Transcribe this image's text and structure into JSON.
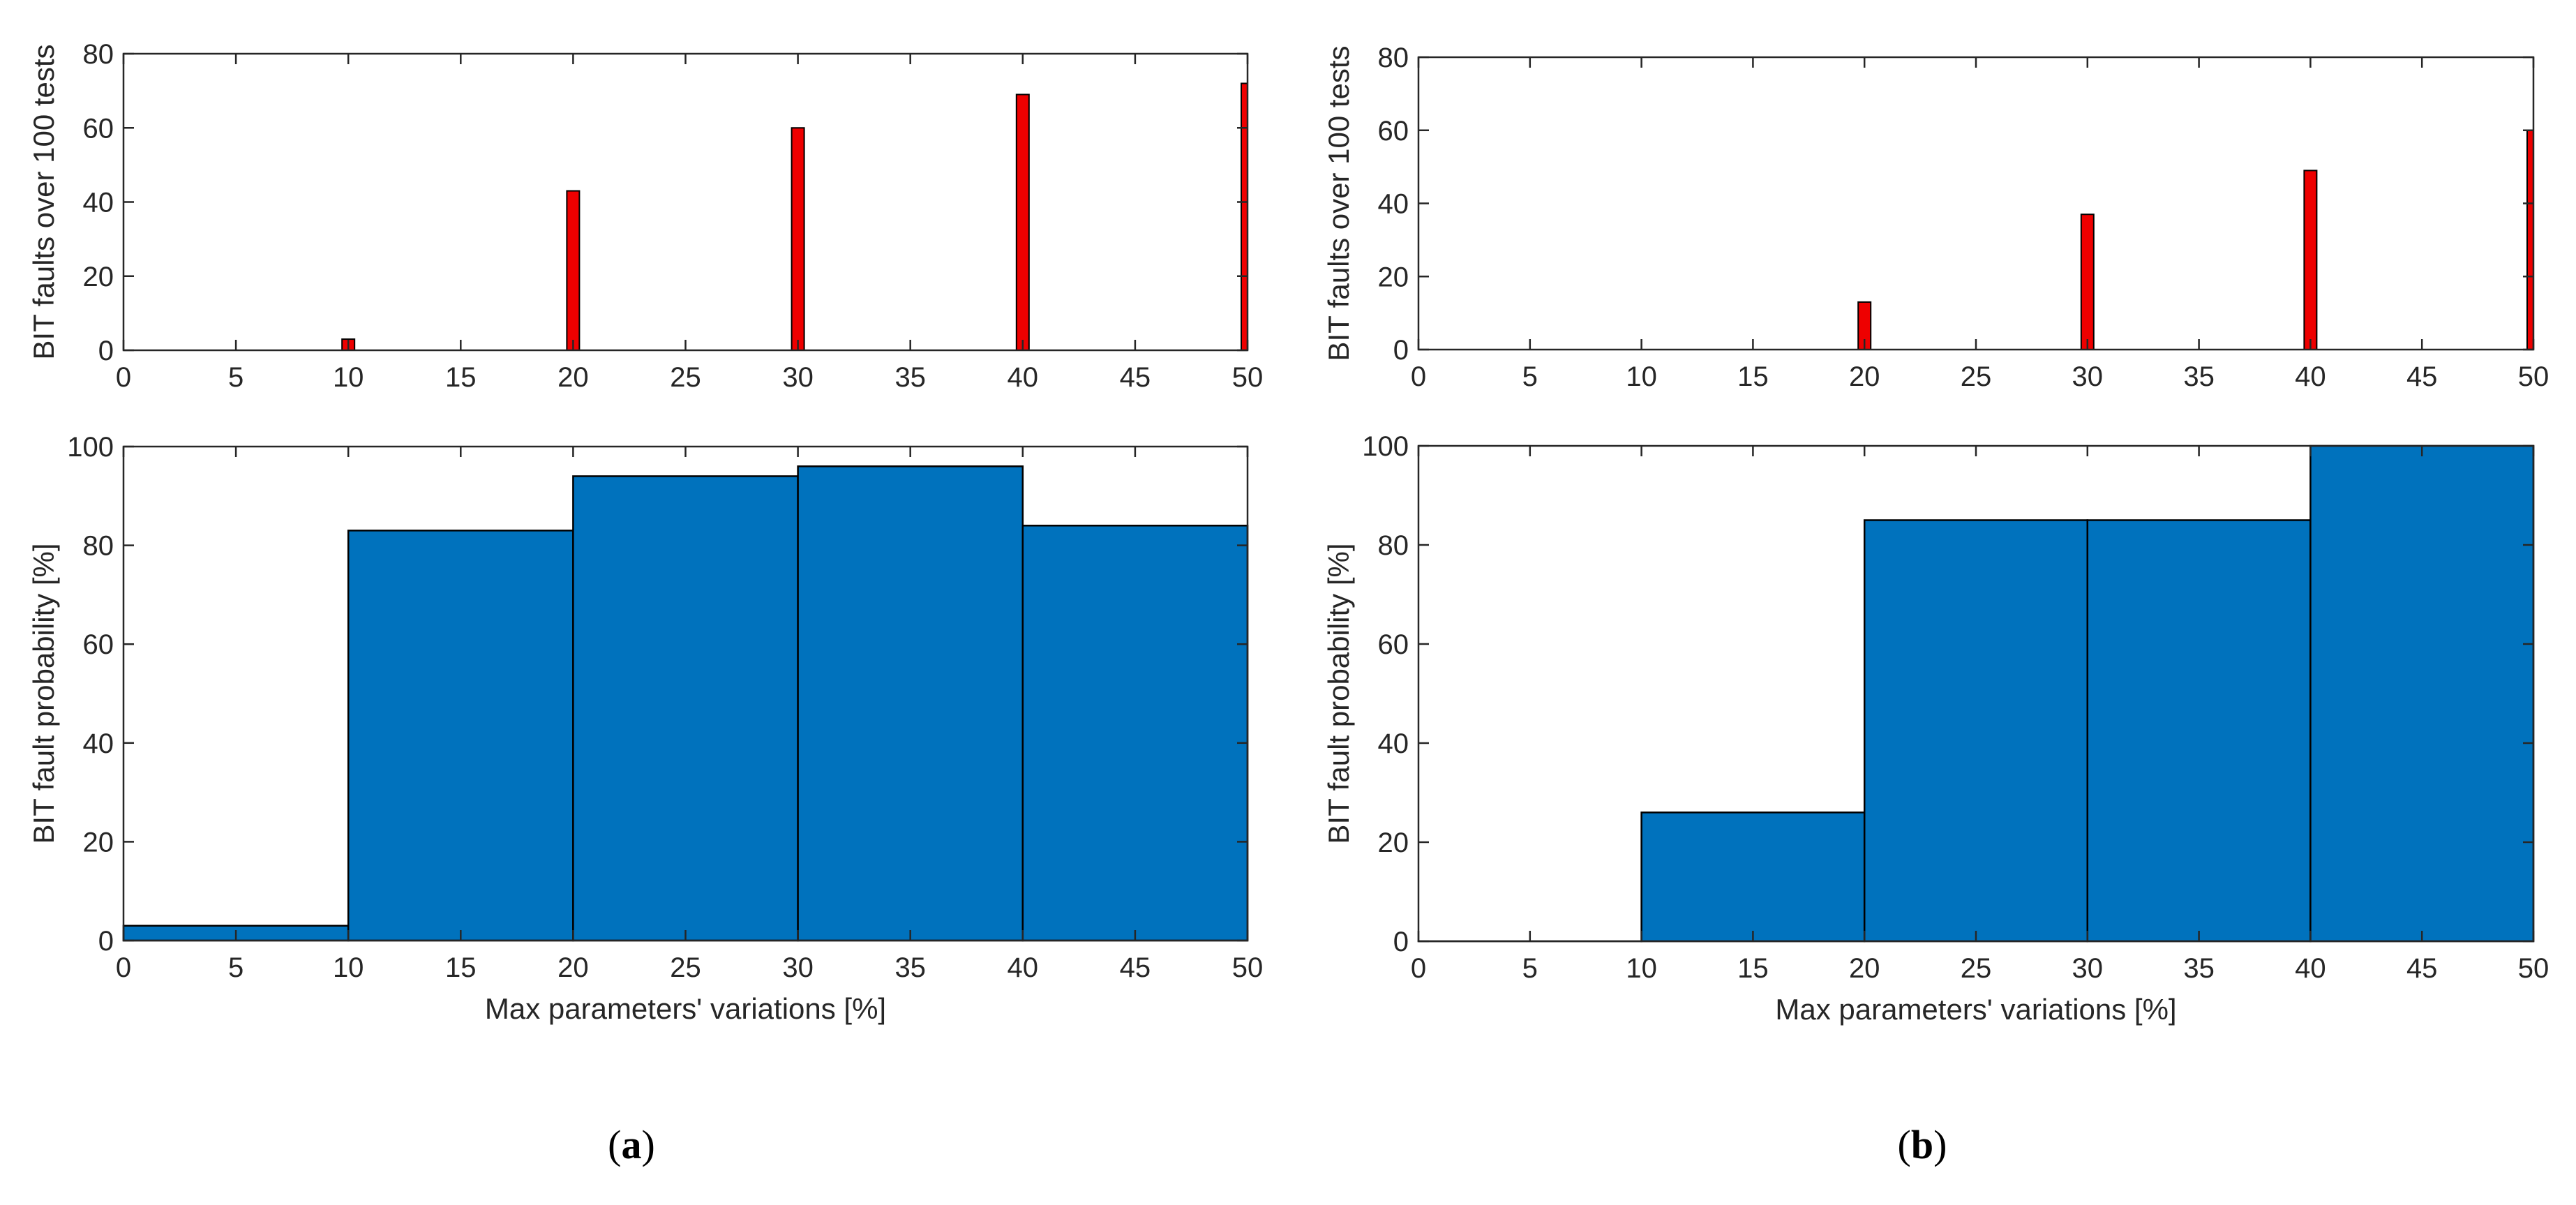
{
  "colors": {
    "top_bar": "#ee0000",
    "bottom_bar": "#0072bd",
    "axis": "#262626"
  },
  "chart_data": [
    {
      "panel": "a",
      "position": "top-left",
      "type": "bar",
      "x": [
        10,
        20,
        30,
        40,
        50
      ],
      "values": [
        3,
        43,
        60,
        69,
        72
      ],
      "xlim": [
        0,
        50
      ],
      "ylim": [
        0,
        80
      ],
      "xticks": [
        "0",
        "5",
        "10",
        "15",
        "20",
        "25",
        "30",
        "35",
        "40",
        "45",
        "50"
      ],
      "yticks": [
        "0",
        "20",
        "40",
        "60",
        "80"
      ],
      "xlabel": "",
      "ylabel": "BIT faults over 100 tests"
    },
    {
      "panel": "a",
      "position": "bottom-left",
      "type": "bar",
      "bins": [
        [
          0,
          10
        ],
        [
          10,
          20
        ],
        [
          20,
          30
        ],
        [
          30,
          40
        ],
        [
          40,
          50
        ]
      ],
      "values": [
        3,
        83,
        94,
        96,
        84
      ],
      "xlim": [
        0,
        50
      ],
      "ylim": [
        0,
        100
      ],
      "xticks": [
        "0",
        "5",
        "10",
        "15",
        "20",
        "25",
        "30",
        "35",
        "40",
        "45",
        "50"
      ],
      "yticks": [
        "0",
        "20",
        "40",
        "60",
        "80",
        "100"
      ],
      "xlabel": "Max parameters' variations [%]",
      "ylabel": "BIT fault probability [%]"
    },
    {
      "panel": "b",
      "position": "top-right",
      "type": "bar",
      "x": [
        20,
        30,
        40,
        50
      ],
      "values": [
        13,
        37,
        49,
        60
      ],
      "xlim": [
        0,
        50
      ],
      "ylim": [
        0,
        80
      ],
      "xticks": [
        "0",
        "5",
        "10",
        "15",
        "20",
        "25",
        "30",
        "35",
        "40",
        "45",
        "50"
      ],
      "yticks": [
        "0",
        "20",
        "40",
        "60",
        "80"
      ],
      "xlabel": "",
      "ylabel": "BIT faults over 100 tests"
    },
    {
      "panel": "b",
      "position": "bottom-right",
      "type": "bar",
      "bins": [
        [
          0,
          10
        ],
        [
          10,
          20
        ],
        [
          20,
          30
        ],
        [
          30,
          40
        ],
        [
          40,
          50
        ]
      ],
      "values": [
        0,
        26,
        85,
        85,
        100
      ],
      "xlim": [
        0,
        50
      ],
      "ylim": [
        0,
        100
      ],
      "xticks": [
        "0",
        "5",
        "10",
        "15",
        "20",
        "25",
        "30",
        "35",
        "40",
        "45",
        "50"
      ],
      "yticks": [
        "0",
        "20",
        "40",
        "60",
        "80",
        "100"
      ],
      "xlabel": "Max parameters' variations [%]",
      "ylabel": "BIT fault probability [%]"
    }
  ],
  "labels": {
    "a": {
      "open": "(",
      "letter": "a",
      "close": ")"
    },
    "b": {
      "open": "(",
      "letter": "b",
      "close": ")"
    }
  }
}
